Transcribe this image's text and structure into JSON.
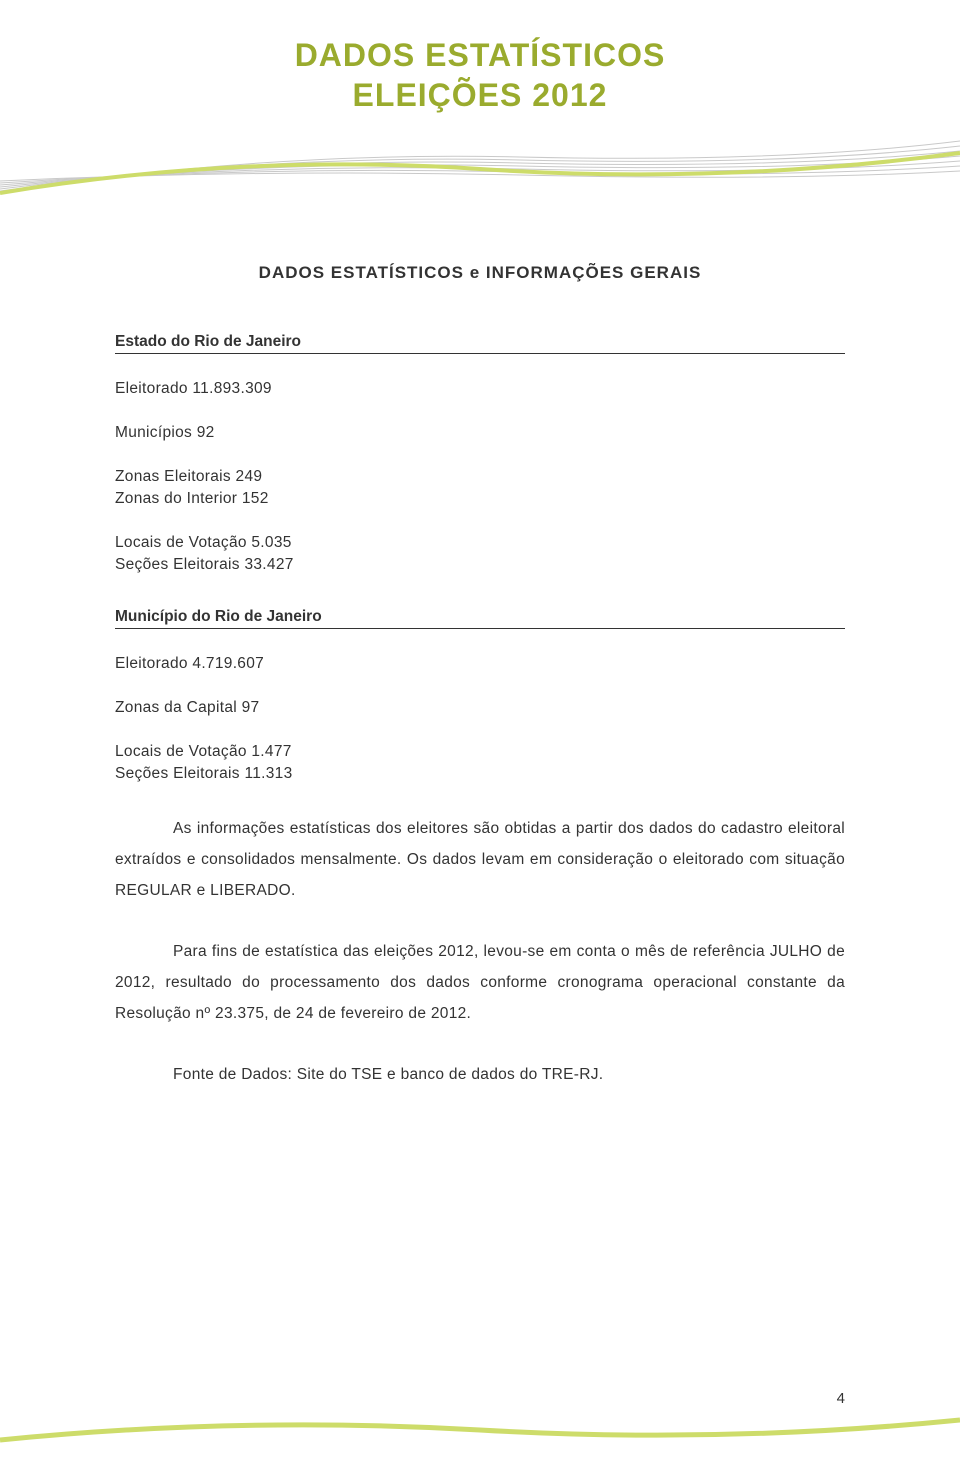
{
  "header": {
    "title_line1": "DADOS ESTATÍSTICOS",
    "title_line2": "ELEIÇÕES 2012",
    "title_color": "#9aab2e",
    "title_fontsize": 32
  },
  "decor": {
    "gray_line_color": "#c9c9c9",
    "accent_line_color": "#cddc6a",
    "bg": "#ffffff"
  },
  "section_title": "DADOS ESTATÍSTICOS e INFORMAÇÕES GERAIS",
  "state": {
    "heading": "Estado do Rio de Janeiro",
    "eleitorado": "Eleitorado 11.893.309",
    "municipios": "Municípios 92",
    "zonas_eleitorais": "Zonas Eleitorais 249",
    "zonas_interior": "Zonas do Interior 152",
    "locais_votacao": "Locais de Votação 5.035",
    "secoes": "Seções Eleitorais 33.427"
  },
  "city": {
    "heading": "Município do Rio de Janeiro",
    "eleitorado": "Eleitorado 4.719.607",
    "zonas_capital": "Zonas da Capital 97",
    "locais_votacao": "Locais de Votação 1.477",
    "secoes": "Seções Eleitorais 11.313"
  },
  "paragraphs": {
    "p1": "As informações estatísticas dos eleitores são obtidas a partir dos dados do cadastro eleitoral extraídos e consolidados mensalmente. Os dados levam em consideração o eleitorado com situação REGULAR e LIBERADO.",
    "p2": "Para fins de estatística das eleições 2012, levou-se em conta o mês de referência JULHO de 2012, resultado do processamento dos dados conforme cronograma operacional constante da Resolução nº 23.375, de 24 de fevereiro de 2012.",
    "p3": "Fonte de Dados: Site do TSE e banco de dados do TRE-RJ."
  },
  "page_number": "4"
}
